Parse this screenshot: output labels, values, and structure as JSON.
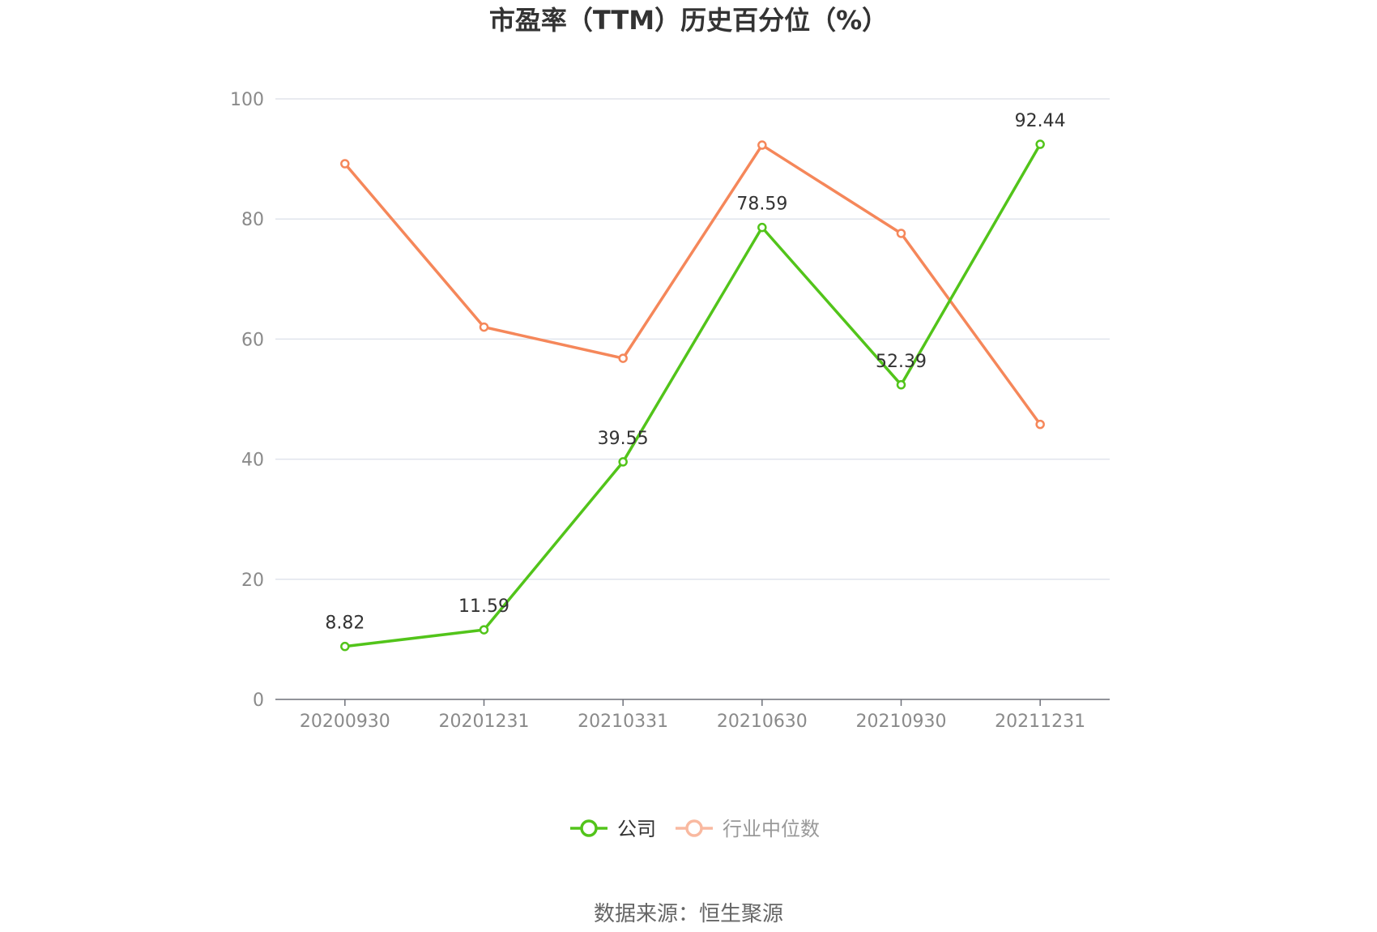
{
  "chart_data": {
    "type": "line",
    "title": "市盈率（TTM）历史百分位（%）",
    "categories": [
      "20200930",
      "20201231",
      "20210331",
      "20210630",
      "20210930",
      "20211231"
    ],
    "ylim": [
      0,
      100
    ],
    "yticks": [
      0,
      20,
      40,
      60,
      80,
      100
    ],
    "grid": true,
    "legend_position": "bottom-center",
    "series": [
      {
        "name": "公司",
        "color": "#52c41a",
        "values": [
          8.82,
          11.59,
          39.55,
          78.59,
          52.39,
          92.44
        ],
        "labels": [
          "8.82",
          "11.59",
          "39.55",
          "78.59",
          "52.39",
          "92.44"
        ],
        "show_labels": true
      },
      {
        "name": "行业中位数",
        "color": "#f5875a",
        "legend_color": "#f9b9a0",
        "values": [
          89.2,
          62.0,
          56.8,
          92.3,
          77.6,
          45.8
        ],
        "show_labels": false
      }
    ],
    "source": "数据来源：恒生聚源"
  }
}
